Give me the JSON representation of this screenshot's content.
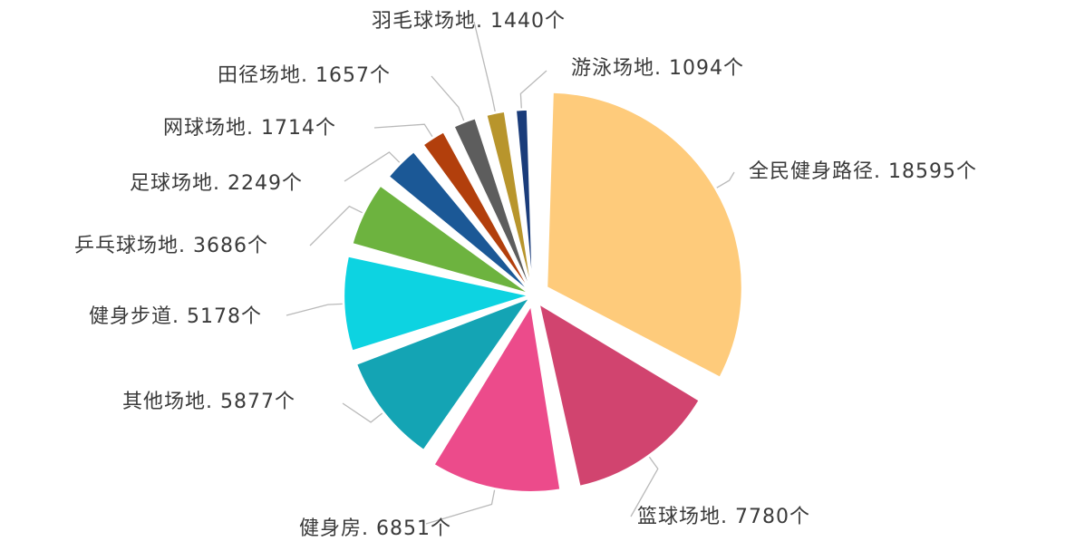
{
  "chart_data": {
    "type": "pie",
    "title": "",
    "unit": "个",
    "slices": [
      {
        "name": "全民健身路径",
        "value": 18595,
        "label": "全民健身路径. 18595个",
        "color": "#FECB7B"
      },
      {
        "name": "篮球场地",
        "value": 7780,
        "label": "篮球场地. 7780个",
        "color": "#D1446F"
      },
      {
        "name": "健身房",
        "value": 6851,
        "label": "健身房. 6851个",
        "color": "#EC4B8B"
      },
      {
        "name": "其他场地",
        "value": 5877,
        "label": "其他场地. 5877个",
        "color": "#14A4B4"
      },
      {
        "name": "健身步道",
        "value": 5178,
        "label": "健身步道. 5178个",
        "color": "#0DD3E1"
      },
      {
        "name": "乒乓球场地",
        "value": 3686,
        "label": "乒乓球场地. 3686个",
        "color": "#6DB33F"
      },
      {
        "name": "足球场地",
        "value": 2249,
        "label": "足球场地. 2249个",
        "color": "#1B5896"
      },
      {
        "name": "网球场地",
        "value": 1714,
        "label": "网球场地. 1714个",
        "color": "#B23F0C"
      },
      {
        "name": "田径场地",
        "value": 1657,
        "label": "田径场地. 1657个",
        "color": "#5D5D5D"
      },
      {
        "name": "羽毛球场地",
        "value": 1440,
        "label": "羽毛球场地. 1440个",
        "color": "#B8952C"
      },
      {
        "name": "游泳场地",
        "value": 1094,
        "label": "游泳场地. 1094个",
        "color": "#1A3C7A"
      }
    ]
  }
}
